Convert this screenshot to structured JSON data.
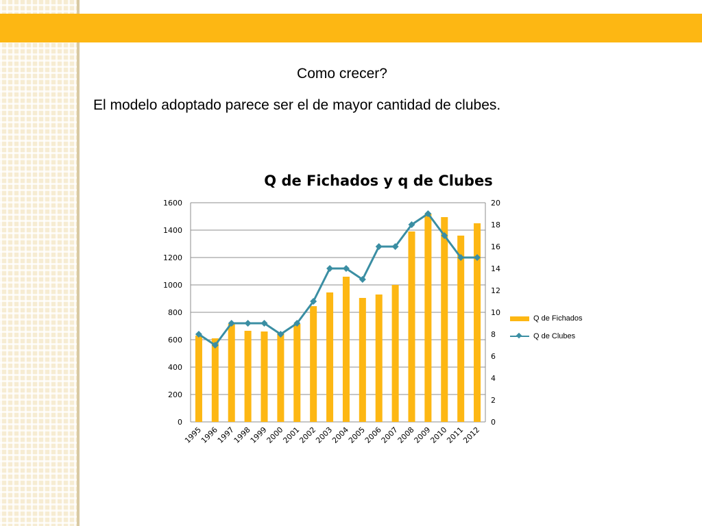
{
  "slide": {
    "heading": "Como crecer?",
    "text": "El modelo adoptado parece ser el de mayor cantidad de clubes.",
    "colors": {
      "band": "#fdb713",
      "pattern": "#f6ecd2"
    }
  },
  "chart_data": {
    "type": "bar",
    "title": "Q de Fichados y q de Clubes",
    "categories": [
      "1995",
      "1996",
      "1997",
      "1998",
      "1999",
      "2000",
      "2001",
      "2002",
      "2003",
      "2004",
      "2005",
      "2006",
      "2007",
      "2008",
      "2009",
      "2010",
      "2011",
      "2012"
    ],
    "series": [
      {
        "name": "Q de Fichados",
        "type": "bar",
        "axis": "left",
        "color": "#fdb713",
        "values": [
          630,
          610,
          715,
          665,
          660,
          655,
          715,
          845,
          945,
          1060,
          905,
          930,
          1000,
          1390,
          1520,
          1495,
          1360,
          1450
        ]
      },
      {
        "name": "Q de Clubes",
        "type": "line",
        "axis": "right",
        "color": "#3a8ea3",
        "marker": "diamond",
        "values": [
          8,
          7,
          9,
          9,
          9,
          8,
          9,
          11,
          14,
          14,
          13,
          16,
          16,
          18,
          19,
          17,
          15,
          15
        ]
      }
    ],
    "y_left": {
      "min": 0,
      "max": 1600,
      "ticks": [
        "0",
        "200",
        "400",
        "600",
        "800",
        "1000",
        "1200",
        "1400",
        "1600"
      ]
    },
    "y_right": {
      "min": 0,
      "max": 20,
      "ticks": [
        "0",
        "2",
        "4",
        "6",
        "8",
        "10",
        "12",
        "14",
        "16",
        "18",
        "20"
      ]
    },
    "grid": true,
    "legend_position": "right"
  }
}
